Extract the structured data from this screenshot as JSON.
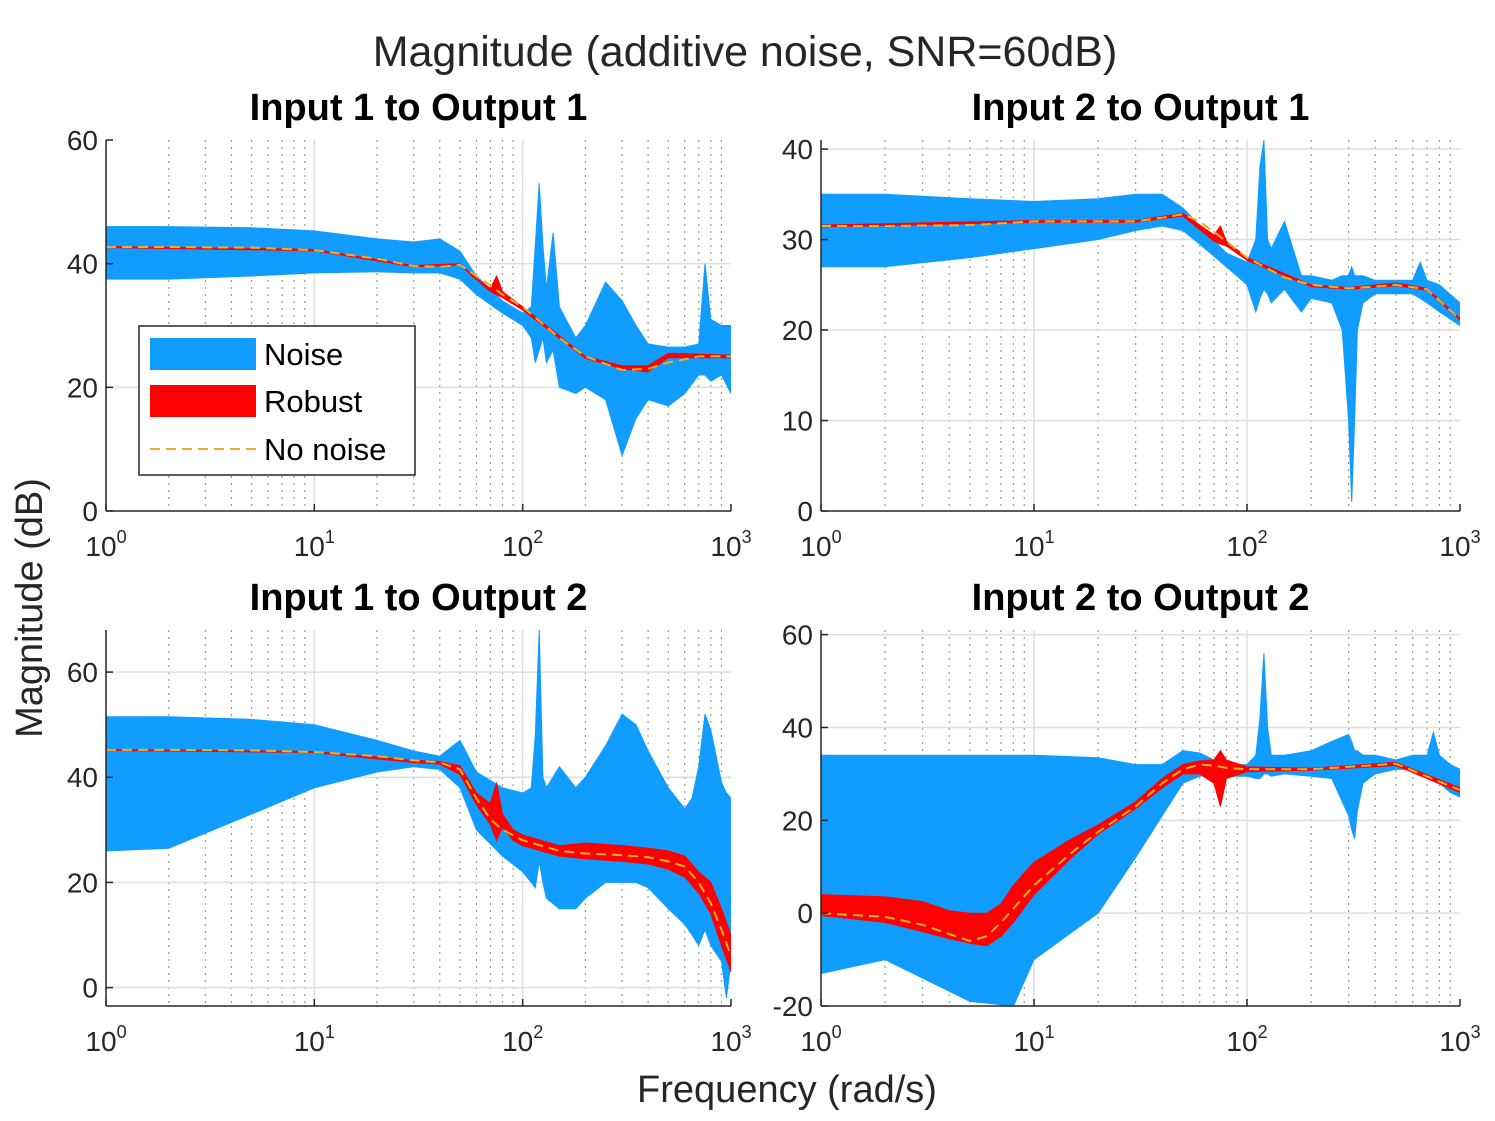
{
  "chart_data": {
    "type": "area",
    "title": "Magnitude (additive noise, SNR=60dB)",
    "xlabel": "Frequency (rad/s)",
    "ylabel": "Magnitude (dB)",
    "xscale": "log",
    "xlim": [
      1,
      1000
    ],
    "grid": true,
    "colors": {
      "noise": "#119cff",
      "robust": "#ff0000",
      "nominal": "#edb120"
    },
    "legend": {
      "placement": "inside-left",
      "entries": [
        "Noise",
        "Robust",
        "No noise"
      ]
    },
    "x_ticks": [
      {
        "base": "10",
        "exp": "0"
      },
      {
        "base": "10",
        "exp": "1"
      },
      {
        "base": "10",
        "exp": "2"
      },
      {
        "base": "10",
        "exp": "3"
      }
    ],
    "panels": [
      {
        "title": "Input 1 to Output 1",
        "ylim": [
          0,
          60
        ],
        "yticks": [
          0,
          20,
          40,
          60
        ],
        "series": {
          "noise": {
            "x": [
              1,
              2,
              5,
              10,
              20,
              30,
              40,
              50,
              60,
              80,
              100,
              110,
              115,
              120,
              125,
              130,
              140,
              150,
              180,
              200,
              250,
              300,
              350,
              400,
              500,
              600,
              700,
              750,
              800,
              900,
              1000
            ],
            "upper": [
              46,
              46,
              45.8,
              45.3,
              44,
              43.5,
              44,
              42,
              38,
              34,
              32,
              33,
              43,
              53,
              43,
              36,
              45,
              33,
              28,
              30,
              37,
              34,
              30,
              27,
              26.5,
              26.5,
              27,
              40,
              31,
              30,
              30
            ],
            "lower": [
              37.5,
              37.5,
              38,
              38.5,
              38.7,
              38.5,
              38.5,
              37.5,
              35,
              32,
              30,
              28,
              24,
              26,
              28,
              24,
              26,
              20,
              19,
              20,
              18,
              9,
              15,
              18,
              17,
              19,
              22,
              22,
              21,
              22,
              19
            ]
          },
          "robust": {
            "x": [
              1,
              10,
              30,
              50,
              60,
              70,
              75,
              80,
              100,
              200,
              300,
              400,
              500,
              1000
            ],
            "upper": [
              42.8,
              42.3,
              39.7,
              40,
              37.6,
              36,
              38,
              35.5,
              33,
              25,
              23.5,
              23.5,
              25.5,
              25.2
            ],
            "lower": [
              42.6,
              42.1,
              39.5,
              39.8,
              37.4,
              35.5,
              35,
              34.5,
              32.5,
              24.7,
              23,
              22.5,
              24.8,
              24.8
            ]
          },
          "nominal": {
            "x": [
              1,
              2,
              5,
              10,
              20,
              30,
              40,
              50,
              60,
              70,
              80,
              100,
              150,
              200,
              300,
              400,
              500,
              700,
              1000
            ],
            "y": [
              42.7,
              42.7,
              42.6,
              42.2,
              40.8,
              39.6,
              39.5,
              39.8,
              38,
              36.5,
              35,
              33,
              28,
              25,
              22.8,
              23,
              24,
              25,
              25
            ]
          }
        }
      },
      {
        "title": "Input 2 to Output 1",
        "ylim": [
          0,
          41
        ],
        "yticks": [
          0,
          10,
          20,
          30,
          40
        ],
        "series": {
          "noise": {
            "x": [
              1,
              2,
              5,
              10,
              20,
              30,
              40,
              50,
              60,
              80,
              100,
              110,
              115,
              120,
              125,
              130,
              150,
              180,
              200,
              250,
              280,
              300,
              310,
              320,
              330,
              350,
              400,
              500,
              600,
              650,
              700,
              800,
              1000
            ],
            "upper": [
              35,
              35,
              34.5,
              34.2,
              34.5,
              35,
              35,
              33.5,
              31.5,
              28.5,
              27.5,
              30,
              38,
              41,
              30,
              29,
              32,
              26,
              26,
              25.5,
              26,
              26,
              27,
              26,
              26,
              26,
              25.5,
              25.5,
              25.5,
              27.5,
              25.5,
              25,
              23
            ],
            "lower": [
              27,
              27,
              28,
              29,
              30,
              31,
              31.5,
              31,
              29.5,
              27,
              25,
              22,
              23.5,
              24.5,
              24,
              23,
              24.5,
              22,
              23.5,
              23,
              20,
              10,
              1,
              10,
              20,
              23,
              24,
              24,
              24,
              23.5,
              23,
              22,
              20.5
            ]
          },
          "robust": {
            "x": [
              1,
              10,
              30,
              50,
              70,
              75,
              80,
              100,
              200,
              300,
              500,
              700,
              1000
            ],
            "upper": [
              31.6,
              32.1,
              32.1,
              32.9,
              30.5,
              31.5,
              29.8,
              28,
              25,
              24.7,
              25.2,
              24.6,
              21.3
            ],
            "lower": [
              31.4,
              31.9,
              31.9,
              32.6,
              29.8,
              29.5,
              29.3,
              27.7,
              24.8,
              24.5,
              24.9,
              24.4,
              21.1
            ]
          },
          "nominal": {
            "x": [
              1,
              2,
              5,
              10,
              20,
              30,
              40,
              50,
              60,
              80,
              100,
              150,
              200,
              300,
              400,
              500,
              700,
              1000
            ],
            "y": [
              31.5,
              31.5,
              31.6,
              32,
              32,
              32,
              32.4,
              32.8,
              32,
              29.8,
              28,
              25.8,
              25,
              24.6,
              24.8,
              25,
              24.5,
              21.2
            ]
          }
        }
      },
      {
        "title": "Input 1 to Output 2",
        "ylim": [
          -3.5,
          68
        ],
        "yticks": [
          0,
          20,
          40,
          60
        ],
        "series": {
          "noise": {
            "x": [
              1,
              2,
              5,
              10,
              20,
              30,
              40,
              50,
              60,
              80,
              100,
              110,
              115,
              120,
              125,
              130,
              150,
              180,
              200,
              250,
              300,
              350,
              400,
              500,
              600,
              650,
              700,
              750,
              800,
              900,
              950,
              1000
            ],
            "upper": [
              51.5,
              51.5,
              51,
              50,
              47,
              45,
              44,
              47,
              41,
              38,
              37,
              38,
              48,
              68,
              40,
              38,
              42,
              38,
              40,
              46,
              52,
              50,
              45,
              38,
              34,
              36,
              42,
              52,
              49,
              39,
              37,
              36
            ],
            "lower": [
              26,
              26.5,
              33,
              38,
              41,
              42,
              41.5,
              38,
              30,
              25,
              22,
              20,
              19,
              24,
              20,
              17,
              15,
              15,
              17,
              20,
              20,
              20,
              19,
              15,
              12,
              10,
              8,
              11,
              8,
              5,
              -2,
              5
            ]
          },
          "robust": {
            "x": [
              1,
              10,
              30,
              40,
              50,
              60,
              70,
              75,
              80,
              90,
              100,
              150,
              200,
              300,
              400,
              500,
              600,
              700,
              800,
              900,
              1000
            ],
            "upper": [
              45.3,
              44.9,
              43.2,
              43,
              42.2,
              37,
              35,
              39,
              33,
              30,
              29,
              27,
              27.5,
              27,
              26.5,
              26,
              25,
              22,
              20,
              15,
              10
            ],
            "lower": [
              45.1,
              44.7,
              42.8,
              42.5,
              40.5,
              34.8,
              31,
              28,
              30.5,
              28,
              27,
              25,
              24.5,
              24,
              23.5,
              22.5,
              21,
              18,
              14,
              8,
              3
            ]
          },
          "nominal": {
            "x": [
              1,
              2,
              5,
              10,
              20,
              30,
              40,
              50,
              60,
              70,
              80,
              100,
              150,
              200,
              300,
              400,
              500,
              600,
              700,
              800,
              900,
              1000
            ],
            "y": [
              45.2,
              45.2,
              45.1,
              44.8,
              44,
              43.2,
              42.8,
              41.5,
              36,
              32,
              30,
              28,
              26,
              25.5,
              25.2,
              24.8,
              24,
              23,
              20,
              16,
              11,
              6
            ]
          }
        }
      },
      {
        "title": "Input 2 to Output 2",
        "ylim": [
          -20,
          61
        ],
        "yticks": [
          -20,
          0,
          20,
          40,
          60
        ],
        "series": {
          "noise": {
            "x": [
              1,
              2,
              5,
              8,
              10,
              20,
              30,
              40,
              50,
              60,
              70,
              80,
              100,
              110,
              115,
              120,
              125,
              130,
              150,
              200,
              250,
              300,
              310,
              320,
              330,
              350,
              400,
              500,
              600,
              700,
              750,
              800,
              900,
              1000
            ],
            "upper": [
              34,
              34,
              34,
              34,
              34,
              33.5,
              32,
              32,
              35,
              34.5,
              33,
              32,
              32,
              34,
              42,
              56,
              40,
              34,
              34,
              35,
              37,
              38.5,
              37,
              35,
              35,
              34,
              34,
              33,
              34,
              34,
              39,
              34,
              32,
              31
            ],
            "lower": [
              -13,
              -10,
              -19,
              -20,
              -10,
              0,
              12,
              21,
              28,
              29.5,
              30,
              29.5,
              29.5,
              29,
              29,
              30,
              30,
              29.5,
              30,
              29.5,
              29,
              21,
              18,
              16,
              22,
              28,
              30,
              31,
              31,
              30,
              29,
              28,
              26,
              25
            ]
          },
          "robust": {
            "x": [
              1,
              2,
              3,
              4,
              5,
              6,
              7,
              8,
              10,
              15,
              20,
              30,
              40,
              50,
              60,
              70,
              75,
              80,
              100,
              200,
              500,
              1000
            ],
            "upper": [
              4,
              3.5,
              2.5,
              0.5,
              0,
              0,
              2,
              6,
              11,
              16,
              19,
              24,
              29,
              32,
              32.8,
              33,
              35,
              33,
              31.5,
              31.2,
              32.5,
              27
            ],
            "lower": [
              -0.5,
              -2,
              -4,
              -5.5,
              -6.5,
              -7,
              -5,
              -2,
              4,
              12,
              17,
              22.5,
              27,
              30,
              30,
              28,
              23,
              29,
              30.5,
              30.8,
              31.8,
              26
            ]
          },
          "nominal": {
            "x": [
              1,
              2,
              3,
              4,
              5,
              6,
              7,
              8,
              10,
              15,
              20,
              30,
              40,
              50,
              60,
              70,
              80,
              100,
              200,
              500,
              1000
            ],
            "y": [
              0,
              -0.8,
              -2.5,
              -4.5,
              -6,
              -5,
              -2,
              1,
              6,
              13,
              17.5,
              23,
              28,
              31,
              32,
              31.8,
              31.3,
              31,
              31,
              32.2,
              26.5
            ]
          }
        }
      }
    ]
  }
}
